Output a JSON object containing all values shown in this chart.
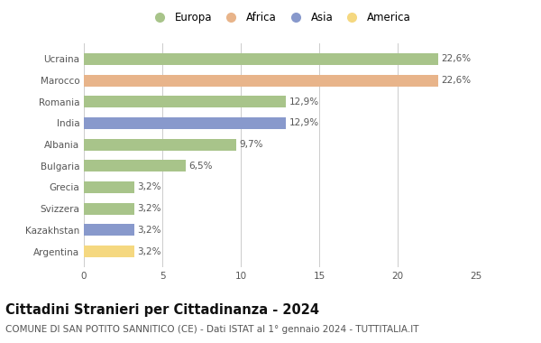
{
  "countries": [
    "Ucraina",
    "Marocco",
    "Romania",
    "India",
    "Albania",
    "Bulgaria",
    "Grecia",
    "Svizzera",
    "Kazakhstan",
    "Argentina"
  ],
  "values": [
    22.6,
    22.6,
    12.9,
    12.9,
    9.7,
    6.5,
    3.2,
    3.2,
    3.2,
    3.2
  ],
  "labels": [
    "22,6%",
    "22,6%",
    "12,9%",
    "12,9%",
    "9,7%",
    "6,5%",
    "3,2%",
    "3,2%",
    "3,2%",
    "3,2%"
  ],
  "continents": [
    "Europa",
    "Africa",
    "Europa",
    "Asia",
    "Europa",
    "Europa",
    "Europa",
    "Europa",
    "Asia",
    "America"
  ],
  "colors": {
    "Europa": "#a8c48a",
    "Africa": "#e8b48a",
    "Asia": "#8899cc",
    "America": "#f5d880"
  },
  "legend_order": [
    "Europa",
    "Africa",
    "Asia",
    "America"
  ],
  "xlim": [
    0,
    25
  ],
  "xticks": [
    0,
    5,
    10,
    15,
    20,
    25
  ],
  "title": "Cittadini Stranieri per Cittadinanza - 2024",
  "subtitle": "COMUNE DI SAN POTITO SANNITICO (CE) - Dati ISTAT al 1° gennaio 2024 - TUTTITALIA.IT",
  "background_color": "#ffffff",
  "grid_color": "#cccccc",
  "bar_height": 0.55,
  "title_fontsize": 10.5,
  "subtitle_fontsize": 7.5,
  "label_fontsize": 7.5,
  "tick_fontsize": 7.5,
  "legend_fontsize": 8.5
}
